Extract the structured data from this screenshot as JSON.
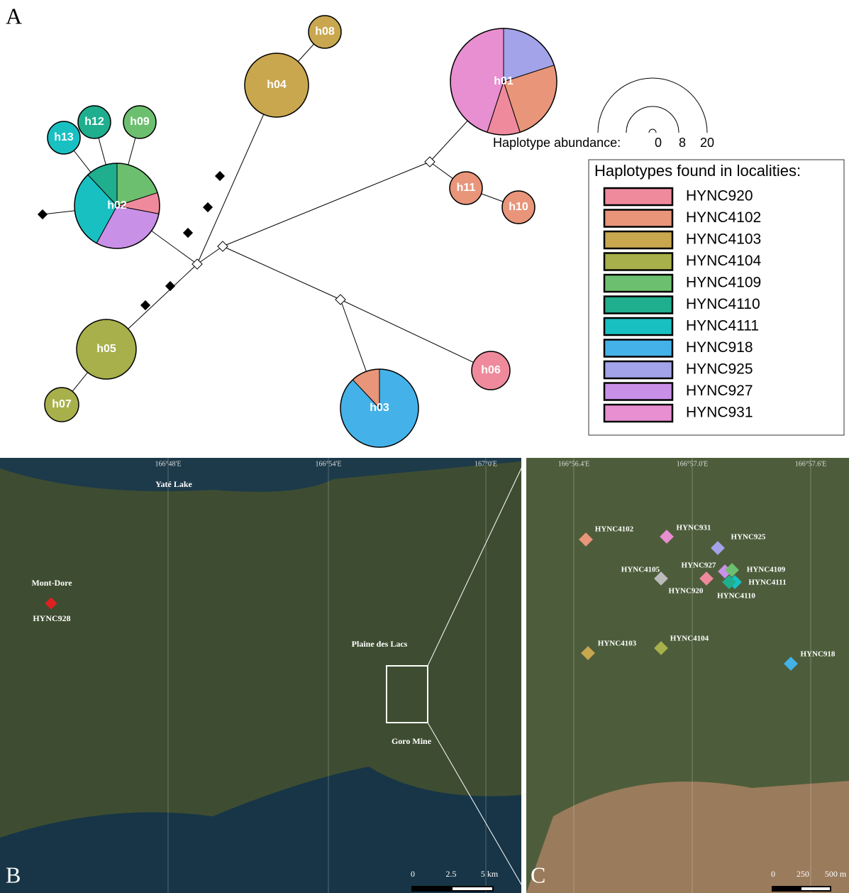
{
  "panel_a": {
    "label": "A",
    "nodes": [
      "h01",
      "h02",
      "h03",
      "h04",
      "h05",
      "h06",
      "h07",
      "h08",
      "h09",
      "h10",
      "h11",
      "h12",
      "h13"
    ],
    "abundance": {
      "title": "Haplotype abundance:",
      "ticks": [
        "0",
        "8",
        "20"
      ]
    },
    "legend": {
      "title": "Haplotypes found in localities:",
      "items": [
        {
          "name": "HYNC920",
          "color": "#ef8a9c"
        },
        {
          "name": "HYNC4102",
          "color": "#e8957a"
        },
        {
          "name": "HYNC4103",
          "color": "#c9a74f"
        },
        {
          "name": "HYNC4104",
          "color": "#a7b04a"
        },
        {
          "name": "HYNC4109",
          "color": "#6cbf6e"
        },
        {
          "name": "HYNC4110",
          "color": "#1fae8e"
        },
        {
          "name": "HYNC4111",
          "color": "#19c0c2"
        },
        {
          "name": "HYNC918",
          "color": "#44b2e8"
        },
        {
          "name": "HYNC925",
          "color": "#a3a3ea"
        },
        {
          "name": "HYNC927",
          "color": "#c990e8"
        },
        {
          "name": "HYNC931",
          "color": "#e78fd0"
        }
      ]
    }
  },
  "panel_b": {
    "label": "B",
    "places": [
      "Yaté Lake",
      "Mont-Dore",
      "HYNC928",
      "Plaine des Lacs",
      "Goro Mine"
    ],
    "longitudes": [
      "166°48'E",
      "166°54'E",
      "167°0'E"
    ],
    "scale": [
      "0",
      "2.5",
      "5 km"
    ]
  },
  "panel_c": {
    "label": "C",
    "sites": [
      "HYNC4102",
      "HYNC931",
      "HYNC925",
      "HYNC927",
      "HYNC4109",
      "HYNC4105",
      "HYNC920",
      "HYNC4111",
      "HYNC4110",
      "HYNC4103",
      "HYNC4104",
      "HYNC918"
    ],
    "longitudes": [
      "166°56.4'E",
      "166°57.0'E",
      "166°57.6'E"
    ],
    "scale": [
      "0",
      "250",
      "500 m"
    ]
  }
}
